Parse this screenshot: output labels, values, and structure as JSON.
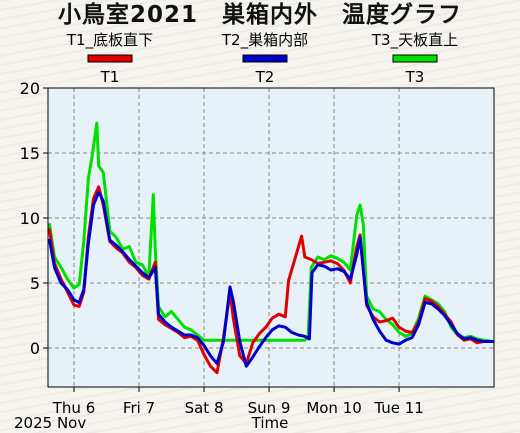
{
  "title": "小鳥室2021　巣箱内外　温度グラフ",
  "legend": [
    {
      "label": "T1_底板直下",
      "short": "T1",
      "color": "#e00000"
    },
    {
      "label": "T2_巣箱内部",
      "short": "T2",
      "color": "#0000cc"
    },
    {
      "label": "T3_天板直上",
      "short": "T3",
      "color": "#00e000"
    }
  ],
  "chart_data": {
    "type": "line",
    "title": "小鳥室2021　巣箱内外　温度グラフ",
    "xlabel": "Time",
    "ylabel": "",
    "x_unit": "days from Thu 6 00:00",
    "xlim": [
      -0.4,
      6.46
    ],
    "ylim": [
      -3,
      20
    ],
    "yticks": [
      0,
      5,
      10,
      15,
      20
    ],
    "xticks": [
      {
        "label": "Thu 6",
        "value": 0
      },
      {
        "label": "Fri 7",
        "value": 1
      },
      {
        "label": "Sat 8",
        "value": 2
      },
      {
        "label": "Sun 9",
        "value": 3
      },
      {
        "label": "Mon 10",
        "value": 4
      },
      {
        "label": "Tue 11",
        "value": 5
      }
    ],
    "date_label": "2025 Nov",
    "grid": true,
    "series": [
      {
        "name": "T1",
        "color": "#e00000",
        "points": [
          [
            -0.38,
            9.2
          ],
          [
            -0.3,
            6.5
          ],
          [
            -0.2,
            5.3
          ],
          [
            -0.1,
            4.3
          ],
          [
            0.0,
            3.3
          ],
          [
            0.08,
            3.2
          ],
          [
            0.15,
            4.3
          ],
          [
            0.22,
            8.5
          ],
          [
            0.3,
            11.5
          ],
          [
            0.38,
            12.4
          ],
          [
            0.45,
            11.0
          ],
          [
            0.55,
            8.2
          ],
          [
            0.65,
            7.7
          ],
          [
            0.75,
            7.3
          ],
          [
            0.85,
            6.6
          ],
          [
            0.95,
            6.2
          ],
          [
            1.05,
            5.6
          ],
          [
            1.15,
            5.3
          ],
          [
            1.25,
            6.6
          ],
          [
            1.3,
            2.2
          ],
          [
            1.4,
            1.8
          ],
          [
            1.5,
            1.5
          ],
          [
            1.6,
            1.2
          ],
          [
            1.7,
            0.8
          ],
          [
            1.8,
            0.9
          ],
          [
            1.9,
            0.6
          ],
          [
            2.0,
            -0.5
          ],
          [
            2.1,
            -1.4
          ],
          [
            2.2,
            -1.9
          ],
          [
            2.3,
            0.8
          ],
          [
            2.4,
            4.3
          ],
          [
            2.45,
            2.3
          ],
          [
            2.55,
            -0.6
          ],
          [
            2.65,
            -1.2
          ],
          [
            2.75,
            0.4
          ],
          [
            2.85,
            1.1
          ],
          [
            2.95,
            1.6
          ],
          [
            3.05,
            2.3
          ],
          [
            3.15,
            2.6
          ],
          [
            3.25,
            2.4
          ],
          [
            3.3,
            5.2
          ],
          [
            3.4,
            6.9
          ],
          [
            3.5,
            8.6
          ],
          [
            3.55,
            7.0
          ],
          [
            3.65,
            6.8
          ],
          [
            3.75,
            6.5
          ],
          [
            3.85,
            6.6
          ],
          [
            3.95,
            6.7
          ],
          [
            4.05,
            6.5
          ],
          [
            4.15,
            6.0
          ],
          [
            4.25,
            5.0
          ],
          [
            4.35,
            7.8
          ],
          [
            4.4,
            8.7
          ],
          [
            4.5,
            3.3
          ],
          [
            4.6,
            2.4
          ],
          [
            4.7,
            2.0
          ],
          [
            4.8,
            2.1
          ],
          [
            4.9,
            2.3
          ],
          [
            5.0,
            1.6
          ],
          [
            5.1,
            1.3
          ],
          [
            5.2,
            1.2
          ],
          [
            5.3,
            2.0
          ],
          [
            5.4,
            3.8
          ],
          [
            5.5,
            3.6
          ],
          [
            5.6,
            3.2
          ],
          [
            5.7,
            2.6
          ],
          [
            5.8,
            2.0
          ],
          [
            5.9,
            1.0
          ],
          [
            6.0,
            0.6
          ],
          [
            6.1,
            0.7
          ],
          [
            6.2,
            0.4
          ],
          [
            6.3,
            0.5
          ],
          [
            6.45,
            0.5
          ]
        ]
      },
      {
        "name": "T2",
        "color": "#0000cc",
        "points": [
          [
            -0.38,
            8.4
          ],
          [
            -0.3,
            6.2
          ],
          [
            -0.2,
            5.0
          ],
          [
            -0.1,
            4.5
          ],
          [
            0.0,
            3.7
          ],
          [
            0.08,
            3.5
          ],
          [
            0.15,
            4.5
          ],
          [
            0.22,
            8.0
          ],
          [
            0.3,
            11.0
          ],
          [
            0.38,
            12.0
          ],
          [
            0.45,
            11.3
          ],
          [
            0.55,
            8.3
          ],
          [
            0.65,
            7.9
          ],
          [
            0.75,
            7.4
          ],
          [
            0.85,
            6.8
          ],
          [
            0.95,
            6.3
          ],
          [
            1.05,
            5.8
          ],
          [
            1.15,
            5.4
          ],
          [
            1.25,
            6.2
          ],
          [
            1.3,
            2.6
          ],
          [
            1.4,
            2.0
          ],
          [
            1.5,
            1.6
          ],
          [
            1.6,
            1.3
          ],
          [
            1.7,
            1.0
          ],
          [
            1.8,
            1.0
          ],
          [
            1.9,
            0.8
          ],
          [
            2.0,
            0.2
          ],
          [
            2.1,
            -0.6
          ],
          [
            2.2,
            -1.2
          ],
          [
            2.3,
            0.5
          ],
          [
            2.4,
            4.7
          ],
          [
            2.45,
            3.6
          ],
          [
            2.55,
            0.5
          ],
          [
            2.65,
            -1.4
          ],
          [
            2.75,
            -0.7
          ],
          [
            2.85,
            0.1
          ],
          [
            2.95,
            0.8
          ],
          [
            3.05,
            1.4
          ],
          [
            3.15,
            1.7
          ],
          [
            3.25,
            1.6
          ],
          [
            3.35,
            1.2
          ],
          [
            3.45,
            1.0
          ],
          [
            3.55,
            0.9
          ],
          [
            3.62,
            0.7
          ],
          [
            3.66,
            5.8
          ],
          [
            3.75,
            6.4
          ],
          [
            3.85,
            6.3
          ],
          [
            3.95,
            6.0
          ],
          [
            4.05,
            6.1
          ],
          [
            4.15,
            5.9
          ],
          [
            4.25,
            5.3
          ],
          [
            4.35,
            7.2
          ],
          [
            4.4,
            8.5
          ],
          [
            4.5,
            3.5
          ],
          [
            4.6,
            2.2
          ],
          [
            4.7,
            1.3
          ],
          [
            4.8,
            0.6
          ],
          [
            4.9,
            0.4
          ],
          [
            5.0,
            0.3
          ],
          [
            5.1,
            0.6
          ],
          [
            5.2,
            0.8
          ],
          [
            5.3,
            1.8
          ],
          [
            5.4,
            3.5
          ],
          [
            5.5,
            3.4
          ],
          [
            5.6,
            3.0
          ],
          [
            5.7,
            2.5
          ],
          [
            5.8,
            1.8
          ],
          [
            5.9,
            1.1
          ],
          [
            6.0,
            0.7
          ],
          [
            6.1,
            0.8
          ],
          [
            6.2,
            0.6
          ],
          [
            6.3,
            0.5
          ],
          [
            6.45,
            0.5
          ]
        ]
      },
      {
        "name": "T3",
        "color": "#00e000",
        "points": [
          [
            -0.38,
            9.6
          ],
          [
            -0.3,
            7.0
          ],
          [
            -0.2,
            6.2
          ],
          [
            -0.1,
            5.3
          ],
          [
            0.0,
            4.6
          ],
          [
            0.08,
            4.9
          ],
          [
            0.15,
            8.2
          ],
          [
            0.22,
            13.0
          ],
          [
            0.28,
            14.8
          ],
          [
            0.35,
            17.3
          ],
          [
            0.38,
            14.0
          ],
          [
            0.45,
            13.5
          ],
          [
            0.55,
            9.0
          ],
          [
            0.65,
            8.5
          ],
          [
            0.75,
            7.6
          ],
          [
            0.85,
            7.8
          ],
          [
            0.95,
            6.6
          ],
          [
            1.05,
            6.4
          ],
          [
            1.15,
            5.5
          ],
          [
            1.22,
            11.8
          ],
          [
            1.25,
            7.5
          ],
          [
            1.3,
            3.2
          ],
          [
            1.4,
            2.4
          ],
          [
            1.5,
            2.8
          ],
          [
            1.6,
            2.2
          ],
          [
            1.7,
            1.6
          ],
          [
            1.8,
            1.4
          ],
          [
            1.9,
            1.0
          ],
          [
            2.0,
            0.6
          ],
          [
            2.2,
            0.6
          ],
          [
            2.4,
            0.6
          ],
          [
            2.6,
            0.6
          ],
          [
            2.8,
            0.6
          ],
          [
            3.0,
            0.6
          ],
          [
            3.2,
            0.6
          ],
          [
            3.4,
            0.6
          ],
          [
            3.55,
            0.6
          ],
          [
            3.6,
            0.8
          ],
          [
            3.65,
            6.2
          ],
          [
            3.75,
            7.0
          ],
          [
            3.85,
            6.8
          ],
          [
            3.95,
            7.1
          ],
          [
            4.05,
            6.9
          ],
          [
            4.15,
            6.6
          ],
          [
            4.25,
            6.0
          ],
          [
            4.35,
            10.2
          ],
          [
            4.4,
            11.0
          ],
          [
            4.45,
            9.5
          ],
          [
            4.5,
            4.0
          ],
          [
            4.6,
            3.0
          ],
          [
            4.7,
            2.8
          ],
          [
            4.8,
            2.2
          ],
          [
            4.9,
            1.8
          ],
          [
            5.0,
            1.2
          ],
          [
            5.1,
            0.9
          ],
          [
            5.2,
            1.1
          ],
          [
            5.3,
            2.3
          ],
          [
            5.4,
            4.0
          ],
          [
            5.5,
            3.7
          ],
          [
            5.6,
            3.4
          ],
          [
            5.7,
            2.8
          ],
          [
            5.8,
            1.6
          ],
          [
            5.9,
            1.0
          ],
          [
            6.0,
            0.8
          ],
          [
            6.1,
            0.9
          ],
          [
            6.2,
            0.7
          ],
          [
            6.3,
            0.6
          ],
          [
            6.45,
            0.5
          ]
        ]
      }
    ]
  }
}
